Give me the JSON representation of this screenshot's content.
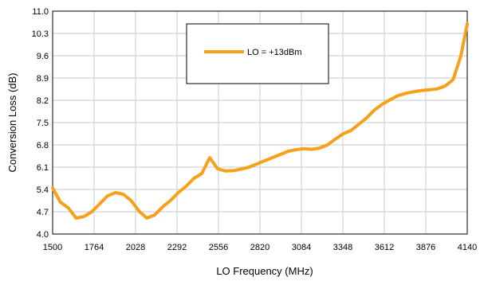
{
  "chart_data": {
    "type": "line",
    "xlabel": "LO Frequency (MHz)",
    "ylabel": "Conversion Loss (dB)",
    "xlim": [
      1500,
      4140
    ],
    "ylim": [
      4.0,
      11.0
    ],
    "x_ticks": [
      1500,
      1764,
      2028,
      2292,
      2556,
      2820,
      3084,
      3348,
      3612,
      3876,
      4140
    ],
    "y_ticks": [
      "4.0",
      "4.7",
      "5.4",
      "6.1",
      "6.8",
      "7.5",
      "8.2",
      "8.9",
      "9.6",
      "10.3",
      "11.0"
    ],
    "grid": true,
    "legend_position": "top-center",
    "series": [
      {
        "name": "LO = +13dBm",
        "color": "#F7A11A",
        "x": [
          1500,
          1550,
          1600,
          1650,
          1700,
          1750,
          1800,
          1850,
          1900,
          1950,
          2000,
          2050,
          2100,
          2150,
          2200,
          2250,
          2300,
          2350,
          2400,
          2450,
          2500,
          2550,
          2600,
          2650,
          2700,
          2750,
          2800,
          2850,
          2900,
          2950,
          3000,
          3050,
          3100,
          3150,
          3200,
          3250,
          3300,
          3350,
          3400,
          3450,
          3500,
          3550,
          3600,
          3650,
          3700,
          3750,
          3800,
          3850,
          3900,
          3950,
          4000,
          4050,
          4100,
          4140
        ],
        "y": [
          5.45,
          5.0,
          4.82,
          4.5,
          4.55,
          4.7,
          4.95,
          5.2,
          5.3,
          5.25,
          5.05,
          4.72,
          4.5,
          4.6,
          4.85,
          5.05,
          5.3,
          5.5,
          5.75,
          5.9,
          6.4,
          6.05,
          5.98,
          5.99,
          6.04,
          6.1,
          6.2,
          6.3,
          6.4,
          6.5,
          6.6,
          6.65,
          6.68,
          6.66,
          6.7,
          6.8,
          6.98,
          7.15,
          7.25,
          7.45,
          7.65,
          7.9,
          8.08,
          8.22,
          8.35,
          8.42,
          8.47,
          8.51,
          8.53,
          8.56,
          8.65,
          8.85,
          9.6,
          10.6
        ]
      }
    ]
  }
}
